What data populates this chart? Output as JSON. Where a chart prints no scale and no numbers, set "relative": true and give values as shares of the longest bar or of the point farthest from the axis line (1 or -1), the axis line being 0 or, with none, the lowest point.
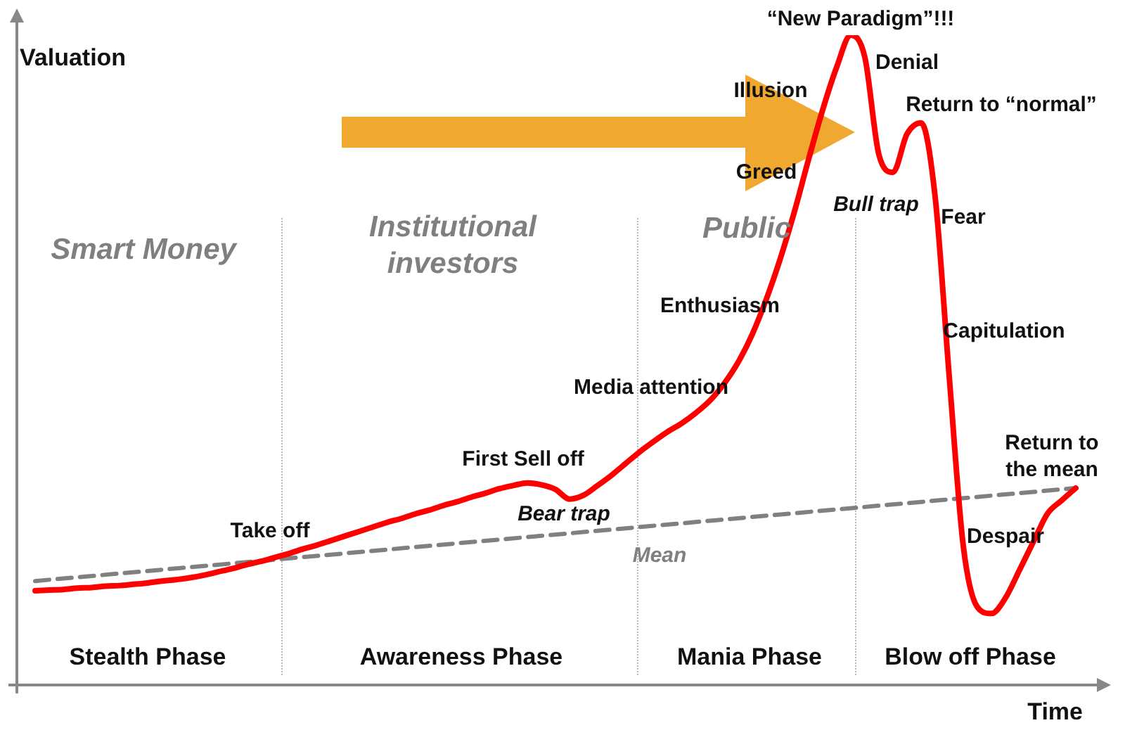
{
  "chart_data": {
    "type": "line",
    "relative": true,
    "xlabel": "Time",
    "ylabel": "Valuation",
    "tick_labels": false,
    "legend": false,
    "marker": "none",
    "categories": [
      null,
      null,
      null,
      null,
      null,
      null,
      null,
      null,
      null,
      null,
      null,
      null,
      null,
      null,
      null,
      null,
      null,
      null,
      null,
      null,
      null,
      null,
      null,
      null,
      null,
      null,
      null,
      null,
      null,
      null,
      null,
      null,
      null,
      null,
      null,
      null,
      null,
      null,
      null,
      null,
      null,
      null,
      null,
      null,
      null,
      null,
      null,
      null,
      null,
      null,
      null,
      null,
      null,
      null,
      null,
      null,
      null,
      null,
      null,
      null,
      null,
      null,
      null,
      null,
      null,
      null,
      null,
      null,
      null,
      null,
      null,
      null,
      null,
      null,
      null
    ],
    "series": [
      {
        "color": "#ff0000",
        "line_style": "solid",
        "values": [
          0.145,
          0.146,
          0.147,
          0.149,
          0.15,
          0.152,
          0.153,
          0.155,
          0.157,
          0.16,
          0.162,
          0.165,
          0.169,
          0.174,
          0.179,
          0.185,
          0.19,
          0.196,
          0.202,
          0.209,
          0.215,
          0.222,
          0.229,
          0.236,
          0.243,
          0.25,
          0.256,
          0.263,
          0.269,
          0.276,
          0.282,
          0.289,
          0.295,
          0.302,
          0.307,
          0.311,
          0.308,
          0.301,
          0.286,
          0.292,
          0.307,
          0.323,
          0.341,
          0.359,
          0.375,
          0.39,
          0.403,
          0.419,
          0.438,
          0.464,
          0.497,
          0.54,
          0.594,
          0.657,
          0.729,
          0.809,
          0.885,
          0.951,
          1,
          0.966,
          0.816,
          0.789,
          0.848,
          0.865,
          0.751,
          0.475,
          0.214,
          0.12,
          0.11,
          0.134,
          0.177,
          0.221,
          0.264,
          0.284,
          0.303
        ]
      },
      {
        "name": "Mean",
        "color": "#808080",
        "line_style": "dashed",
        "values": [
          0.16,
          null,
          null,
          null,
          null,
          null,
          null,
          null,
          null,
          null,
          null,
          null,
          null,
          null,
          null,
          null,
          null,
          null,
          null,
          null,
          null,
          null,
          null,
          null,
          null,
          null,
          null,
          null,
          null,
          null,
          null,
          null,
          null,
          null,
          null,
          null,
          null,
          null,
          null,
          null,
          null,
          null,
          null,
          null,
          null,
          null,
          null,
          null,
          null,
          null,
          null,
          null,
          null,
          null,
          null,
          null,
          null,
          null,
          null,
          null,
          null,
          null,
          null,
          null,
          null,
          null,
          null,
          null,
          null,
          null,
          null,
          null,
          null,
          null,
          0.303
        ]
      }
    ],
    "annotations": [
      "“New Paradigm”!!!",
      "Denial",
      "Illusion",
      "Greed",
      "Return to “normal”",
      "Bull trap",
      "Fear",
      "Enthusiasm",
      "Capitulation",
      "Media attention",
      "First Sell off",
      "Bear trap",
      "Take off",
      "Return to the mean",
      "Despair",
      "Smart Money",
      "Institutional investors",
      "Public",
      "Stealth Phase",
      "Awareness Phase",
      "Mania Phase",
      "Blow off Phase"
    ]
  }
}
